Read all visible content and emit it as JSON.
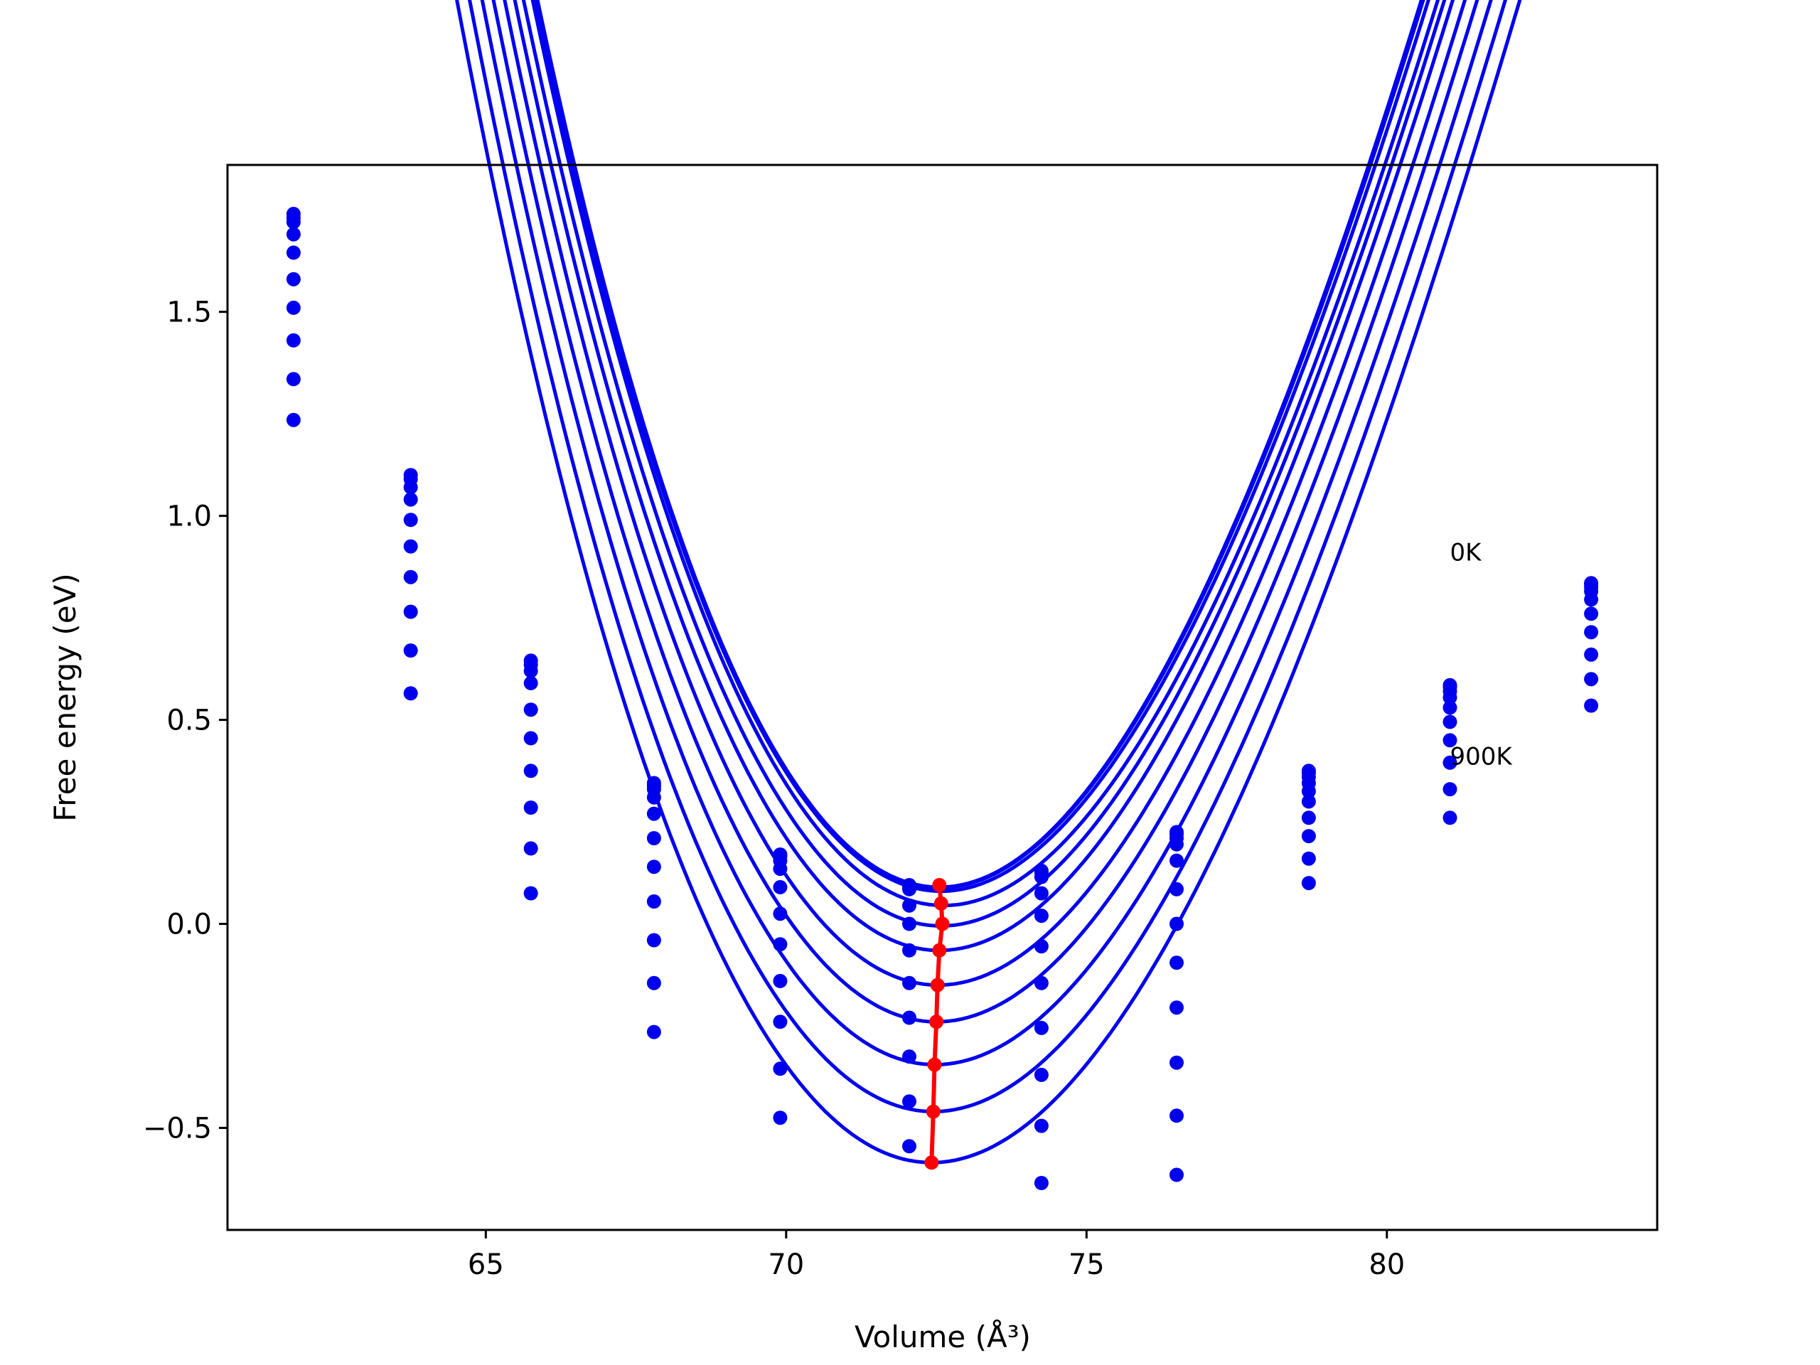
{
  "chart_data": {
    "type": "line",
    "xlabel": "Volume (Å³)",
    "ylabel": "Free energy (eV)",
    "xlim": [
      60.7,
      84.5
    ],
    "ylim": [
      -0.75,
      1.86
    ],
    "xticks": [
      65,
      70,
      75,
      80
    ],
    "xtick_labels": [
      "65",
      "70",
      "75",
      "80"
    ],
    "yticks": [
      -0.5,
      0.0,
      0.5,
      1.0,
      1.5
    ],
    "ytick_labels": [
      "−0.5",
      "0.0",
      "0.5",
      "1.0",
      "1.5"
    ],
    "grid": false,
    "annotations": [
      {
        "text": "0K",
        "x": 81.05,
        "y": 0.89
      },
      {
        "text": "900K",
        "x": 81.05,
        "y": 0.39
      }
    ],
    "x": [
      61.8,
      63.75,
      65.75,
      67.8,
      69.9,
      72.05,
      74.25,
      76.5,
      78.7,
      81.05,
      83.4
    ],
    "series": [
      {
        "values": [
          1.74,
          1.1,
          0.645,
          0.345,
          0.17,
          0.095,
          0.13,
          0.225,
          0.375,
          0.585,
          0.835
        ],
        "color": "#0000ee"
      },
      {
        "values": [
          1.73,
          1.09,
          0.635,
          0.338,
          0.165,
          0.092,
          0.125,
          0.22,
          0.37,
          0.58,
          0.832
        ],
        "color": "#0000ee"
      },
      {
        "values": [
          1.72,
          1.07,
          0.62,
          0.33,
          0.155,
          0.085,
          0.115,
          0.21,
          0.36,
          0.57,
          0.825
        ],
        "color": "#0000ee"
      },
      {
        "values": [
          1.69,
          1.04,
          0.59,
          0.31,
          0.135,
          0.045,
          0.075,
          0.195,
          0.345,
          0.555,
          0.815
        ],
        "color": "#0000ee"
      },
      {
        "values": [
          1.645,
          0.99,
          0.525,
          0.27,
          0.09,
          0.0,
          0.02,
          0.155,
          0.325,
          0.53,
          0.795
        ],
        "color": "#0000ee"
      },
      {
        "values": [
          1.58,
          0.925,
          0.455,
          0.21,
          0.025,
          -0.065,
          -0.055,
          0.085,
          0.3,
          0.495,
          0.76
        ],
        "color": "#0000ee"
      },
      {
        "values": [
          1.51,
          0.85,
          0.375,
          0.14,
          -0.05,
          -0.145,
          -0.145,
          0.0,
          0.26,
          0.45,
          0.715
        ],
        "color": "#0000ee"
      },
      {
        "values": [
          1.43,
          0.765,
          0.285,
          0.055,
          -0.14,
          -0.23,
          -0.255,
          -0.095,
          0.215,
          0.395,
          0.66
        ],
        "color": "#0000ee"
      },
      {
        "values": [
          1.335,
          0.67,
          0.185,
          -0.04,
          -0.24,
          -0.325,
          -0.37,
          -0.205,
          0.16,
          0.33,
          0.6
        ],
        "color": "#0000ee"
      },
      {
        "values": [
          1.235,
          0.565,
          0.075,
          -0.145,
          -0.355,
          -0.435,
          -0.495,
          -0.34,
          0.1,
          0.26,
          0.535
        ],
        "color": "#0000ee"
      },
      {
        "values": [
          null,
          null,
          null,
          -0.265,
          -0.475,
          -0.545,
          -0.635,
          -0.47,
          null,
          null,
          null
        ],
        "color": "#0000ee"
      },
      {
        "values": [
          null,
          null,
          null,
          null,
          null,
          null,
          null,
          -0.615,
          null,
          null,
          null
        ],
        "color": "#0000ee"
      }
    ],
    "fits": [
      {
        "vmin": 72.55,
        "emin": 0.09,
        "a": 0.00465,
        "b": -0.000112
      },
      {
        "vmin": 72.55,
        "emin": 0.088,
        "a": 0.00462,
        "b": -0.000111
      },
      {
        "vmin": 72.58,
        "emin": 0.08,
        "a": 0.00458,
        "b": -0.00011
      },
      {
        "vmin": 72.62,
        "emin": 0.045,
        "a": 0.00453,
        "b": -0.000108
      },
      {
        "vmin": 72.58,
        "emin": -0.005,
        "a": 0.00448,
        "b": -0.000106
      },
      {
        "vmin": 72.55,
        "emin": -0.065,
        "a": 0.00444,
        "b": -0.000105
      },
      {
        "vmin": 72.53,
        "emin": -0.15,
        "a": 0.0044,
        "b": -0.000104
      },
      {
        "vmin": 72.5,
        "emin": -0.24,
        "a": 0.00436,
        "b": -0.000103
      },
      {
        "vmin": 72.48,
        "emin": -0.345,
        "a": 0.00433,
        "b": -0.000102
      },
      {
        "vmin": 72.45,
        "emin": -0.46,
        "a": 0.0043,
        "b": -0.000101
      },
      {
        "vmin": 72.42,
        "emin": -0.585,
        "a": 0.00428,
        "b": -0.0001
      }
    ],
    "minima": {
      "name": "equilibrium volume",
      "color": "#ff0000",
      "x": [
        72.55,
        72.58,
        72.6,
        72.55,
        72.52,
        72.5,
        72.47,
        72.45,
        72.42
      ],
      "y": [
        0.095,
        0.05,
        0.0,
        -0.065,
        -0.15,
        -0.24,
        -0.345,
        -0.46,
        -0.585
      ]
    }
  }
}
